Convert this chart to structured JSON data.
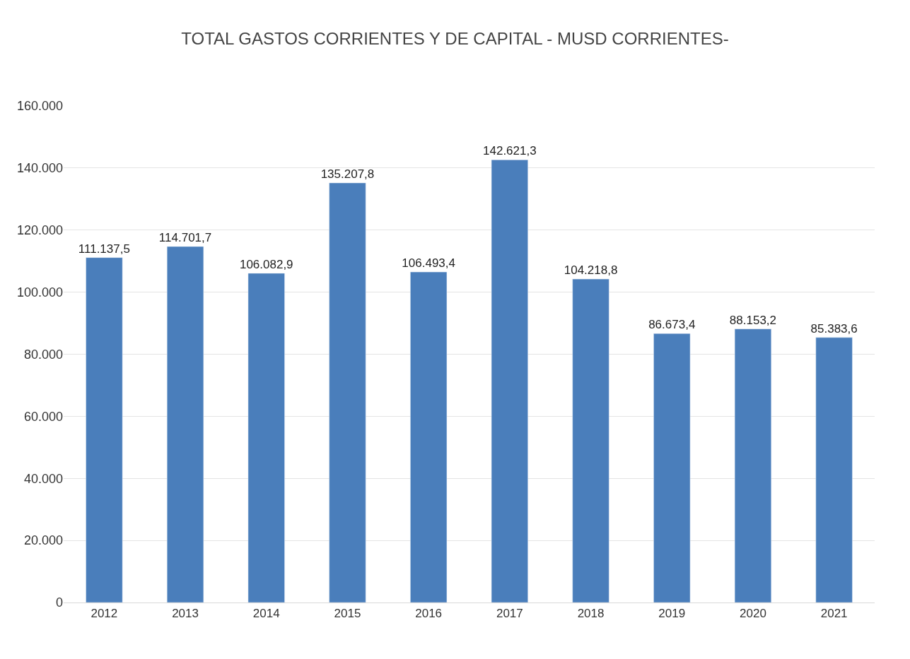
{
  "chart_data": {
    "type": "bar",
    "title": "TOTAL GASTOS CORRIENTES Y DE CAPITAL - MUSD CORRIENTES-",
    "categories": [
      "2012",
      "2013",
      "2014",
      "2015",
      "2016",
      "2017",
      "2018",
      "2019",
      "2020",
      "2021"
    ],
    "values": [
      111137.5,
      114701.7,
      106082.9,
      135207.8,
      106493.4,
      142621.3,
      104218.8,
      86673.4,
      88153.2,
      85383.6
    ],
    "value_labels": [
      "111.137,5",
      "114.701,7",
      "106.082,9",
      "135.207,8",
      "106.493,4",
      "142.621,3",
      "104.218,8",
      "86.673,4",
      "88.153,2",
      "85.383,6"
    ],
    "color": "#4a7ebb",
    "ylim": [
      0,
      160000
    ],
    "yticks": [
      0,
      {
        "value": 20000,
        "label": "20.000"
      },
      {
        "value": 40000,
        "label": "40.000"
      },
      {
        "value": 60000,
        "label": "60.000"
      },
      {
        "value": 80000,
        "label": "80.000"
      },
      {
        "value": 100000,
        "label": "100.000"
      },
      {
        "value": 120000,
        "label": "120.000"
      },
      {
        "value": 140000,
        "label": "140.000"
      },
      {
        "value": 160000,
        "label": "160.000"
      }
    ],
    "grid": "y"
  }
}
